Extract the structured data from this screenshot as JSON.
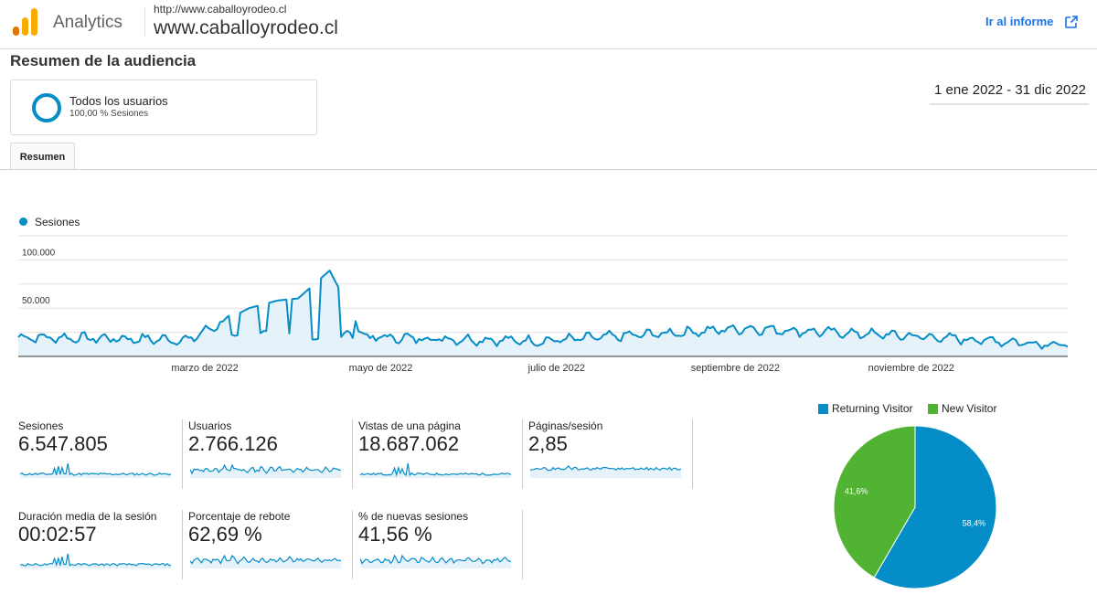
{
  "header": {
    "product": "Analytics",
    "property_url": "http://www.caballoyrodeo.cl",
    "property_name": "www.caballoyrodeo.cl",
    "report_link": "Ir al informe",
    "icons": [
      "analytics-logo",
      "open-external-icon"
    ]
  },
  "page": {
    "title": "Resumen de la audiencia",
    "segment": {
      "name": "Todos los usuarios",
      "sub": "100,00 % Sesiones"
    },
    "date_range": "1 ene 2022 - 31 dic 2022",
    "tab": "Resumen"
  },
  "colors": {
    "primary": "#058dc7",
    "secondary": "#50b432",
    "link": "#1a73e8"
  },
  "chart_data": [
    {
      "type": "line",
      "series": [
        {
          "name": "Sesiones",
          "color": "#058dc7"
        }
      ],
      "ylabel": "",
      "yticks": [
        "100.000",
        "50.000"
      ],
      "ytick_values": [
        100000,
        50000
      ],
      "ylim": [
        0,
        125000
      ],
      "xticks": [
        "marzo de 2022",
        "mayo de 2022",
        "julio de 2022",
        "septiembre de 2022",
        "noviembre de 2022"
      ],
      "grid": true,
      "legend": "top-left",
      "trend": "daily sessions mostly ~12.000–28.000 with spikes of ~50.000–60.000 in March/April and a peak ~90.000 in mid-April",
      "daily_approx": [
        {
          "date": "2022-01-01",
          "value": 20000
        },
        {
          "date": "2022-02-15",
          "value": 18000
        },
        {
          "date": "2022-03-01",
          "value": 17000
        },
        {
          "date": "2022-03-22",
          "value": 50000
        },
        {
          "date": "2022-04-01",
          "value": 58000
        },
        {
          "date": "2022-04-08",
          "value": 60000
        },
        {
          "date": "2022-04-19",
          "value": 89000
        },
        {
          "date": "2022-05-01",
          "value": 20000
        },
        {
          "date": "2022-07-01",
          "value": 16000
        },
        {
          "date": "2022-09-10",
          "value": 29000
        },
        {
          "date": "2022-11-01",
          "value": 22000
        },
        {
          "date": "2022-12-31",
          "value": 12000
        }
      ]
    },
    {
      "type": "pie",
      "categories": [
        "Returning Visitor",
        "New Visitor"
      ],
      "values": [
        58.4,
        41.6
      ],
      "labels": [
        "58,4%",
        "41,6%"
      ],
      "colors": [
        "#058dc7",
        "#50b432"
      ],
      "legend": "top"
    }
  ],
  "metrics": [
    {
      "name": "Sesiones",
      "value": "6.547.805",
      "spark": "spiky"
    },
    {
      "name": "Usuarios",
      "value": "2.766.126",
      "spark": "wavy"
    },
    {
      "name": "Vistas de una página",
      "value": "18.687.062",
      "spark": "spiky"
    },
    {
      "name": "Páginas/sesión",
      "value": "2,85",
      "spark": "flat"
    },
    {
      "name": "Duración media de la sesión",
      "value": "00:02:57",
      "spark": "spiky"
    },
    {
      "name": "Porcentaje de rebote",
      "value": "62,69 %",
      "spark": "wavy"
    },
    {
      "name": "% de nuevas sesiones",
      "value": "41,56 %",
      "spark": "wavy"
    }
  ]
}
